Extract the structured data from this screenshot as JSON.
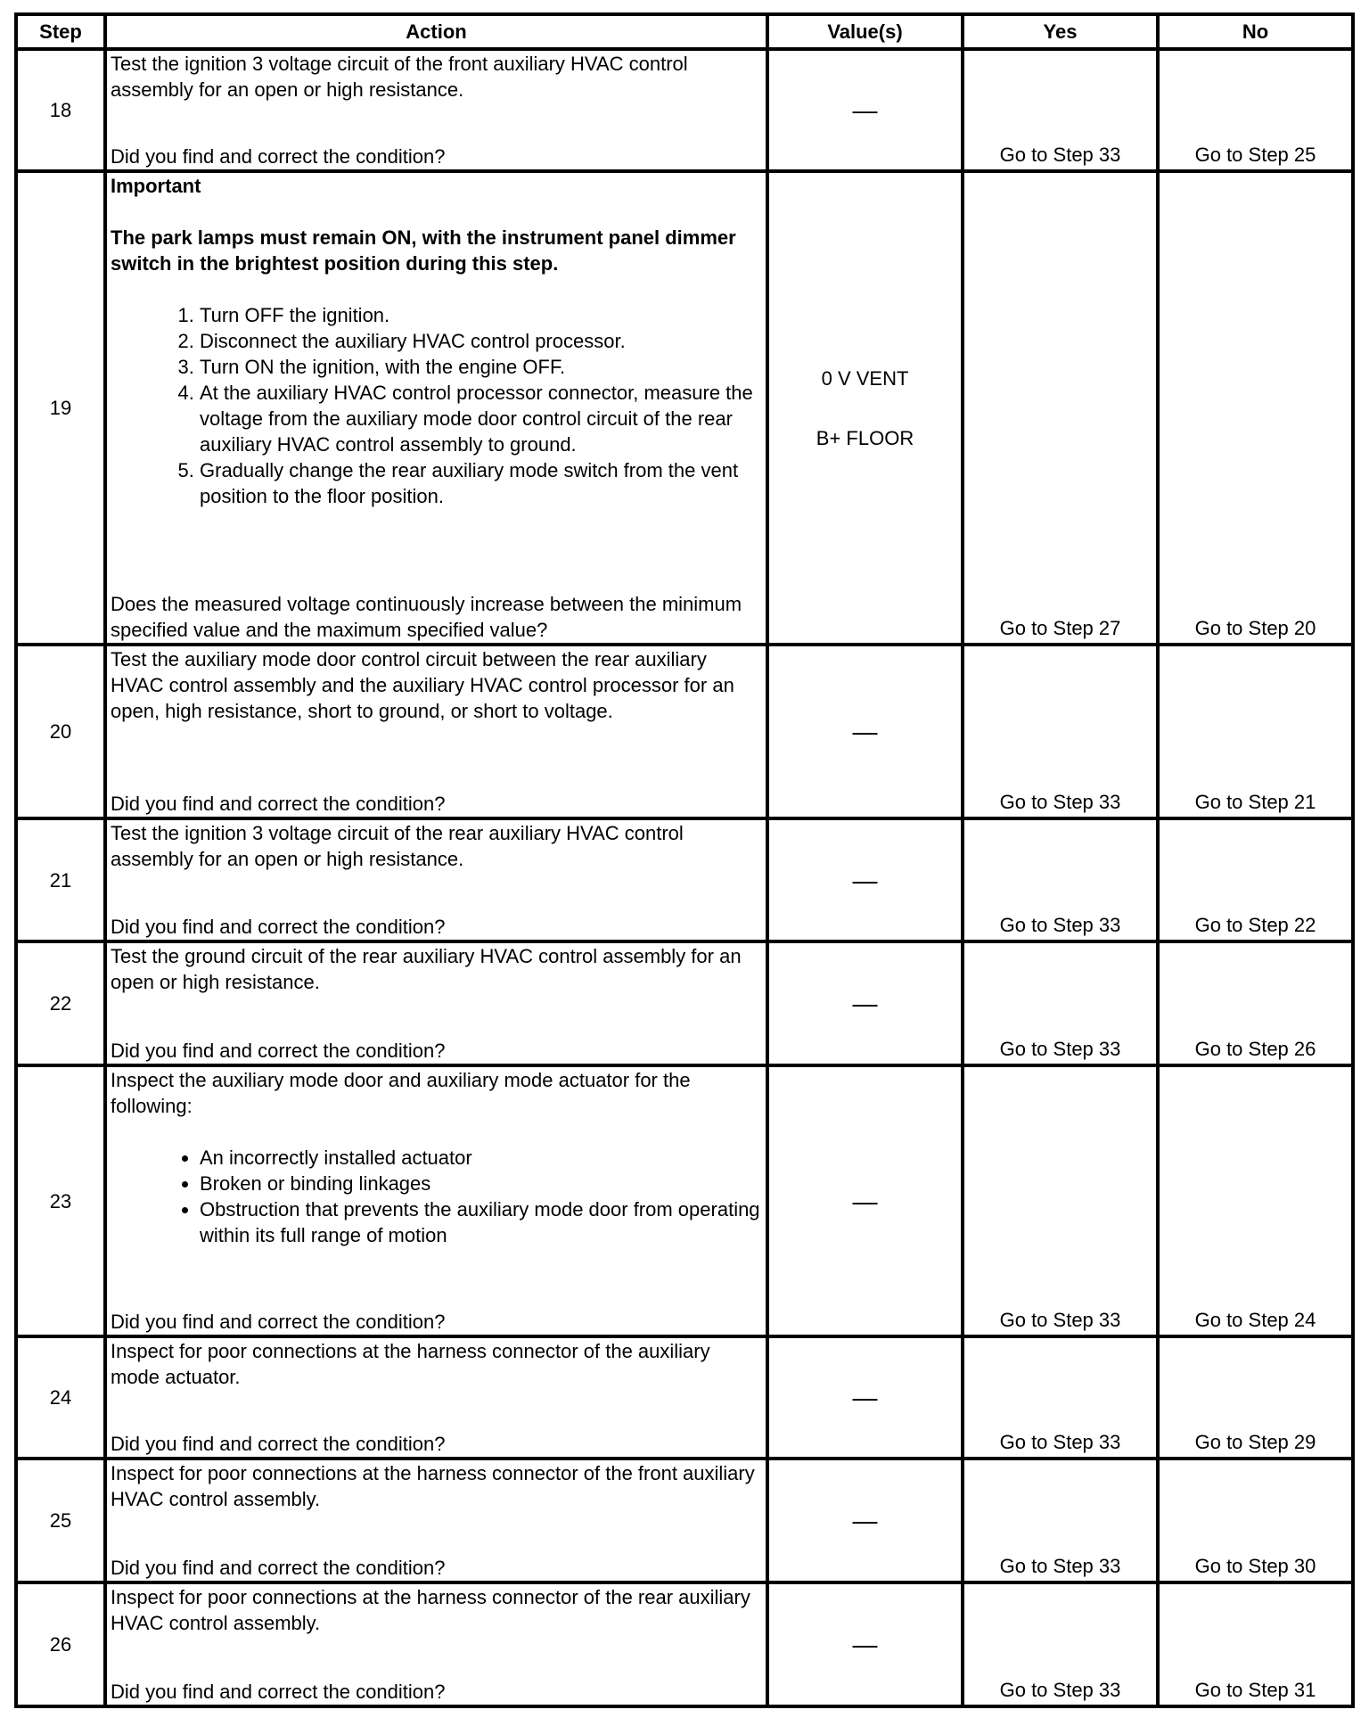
{
  "headers": {
    "step": "Step",
    "action": "Action",
    "values": "Value(s)",
    "yes": "Yes",
    "no": "No"
  },
  "rows": [
    {
      "step": "18",
      "height": 137,
      "intro": [
        "Test the ignition 3 voltage circuit of the front auxiliary HVAC control assembly for an open or high resistance."
      ],
      "question": "Did you find and correct the condition?",
      "values": [
        "—"
      ],
      "yes": "Go to Step 33",
      "no": "Go to Step 25"
    },
    {
      "step": "19",
      "height": 531,
      "important": "Important",
      "important_text": "The park lamps must remain ON, with the instrument panel dimmer switch in the brightest position during this step.",
      "list_type": "ordered",
      "list": [
        "Turn OFF the ignition.",
        "Disconnect the auxiliary HVAC control processor.",
        "Turn ON the ignition, with the engine OFF.",
        "At the auxiliary HVAC control processor connector, measure the voltage from the auxiliary mode door control circuit of the rear auxiliary HVAC control assembly to ground.",
        "Gradually change the rear auxiliary mode switch from the vent position to the floor position."
      ],
      "question": "Does the measured voltage continuously increase between the minimum specified value and the maximum specified value?",
      "values": [
        "0 V VENT",
        "B+ FLOOR"
      ],
      "yes": "Go to Step 27",
      "no": "Go to Step 20"
    },
    {
      "step": "20",
      "height": 195,
      "intro": [
        "Test the auxiliary mode door control circuit between the rear auxiliary HVAC control assembly and the auxiliary HVAC control processor for an open, high resistance, short to ground, or short to voltage."
      ],
      "question": "Did you find and correct the condition?",
      "values": [
        "—"
      ],
      "yes": "Go to Step 33",
      "no": "Go to Step 21"
    },
    {
      "step": "21",
      "height": 138,
      "intro": [
        "Test the ignition 3 voltage circuit of the rear auxiliary HVAC control assembly for an open or high resistance."
      ],
      "question": "Did you find and correct the condition?",
      "values": [
        "—"
      ],
      "yes": "Go to Step 33",
      "no": "Go to Step 22"
    },
    {
      "step": "22",
      "height": 139,
      "intro": [
        "Test the ground circuit of the rear auxiliary HVAC control assembly for an open or high resistance."
      ],
      "question": "Did you find and correct the condition?",
      "values": [
        "—"
      ],
      "yes": "Go to Step 33",
      "no": "Go to Step 26"
    },
    {
      "step": "23",
      "height": 304,
      "intro": [
        "Inspect the auxiliary mode door and auxiliary mode actuator for the following:"
      ],
      "list_type": "bullet",
      "list": [
        "An incorrectly installed actuator",
        "Broken or binding linkages",
        "Obstruction that prevents the auxiliary mode door from operating within its full range of motion"
      ],
      "question": "Did you find and correct the condition?",
      "values": [
        "—"
      ],
      "yes": "Go to Step 33",
      "no": "Go to Step 24"
    },
    {
      "step": "24",
      "height": 137,
      "intro": [
        "Inspect for poor connections at the harness connector of the auxiliary mode actuator."
      ],
      "question": "Did you find and correct the condition?",
      "values": [
        "—"
      ],
      "yes": "Go to Step 33",
      "no": "Go to Step 29"
    },
    {
      "step": "25",
      "height": 139,
      "intro": [
        "Inspect for poor connections at the harness connector of the front auxiliary HVAC control assembly."
      ],
      "question": "Did you find and correct the condition?",
      "values": [
        "—"
      ],
      "yes": "Go to Step 33",
      "no": "Go to Step 30"
    },
    {
      "step": "26",
      "height": 139,
      "intro": [
        "Inspect for poor connections at the harness connector of the rear auxiliary HVAC control assembly."
      ],
      "question": "Did you find and correct the condition?",
      "values": [
        "—"
      ],
      "yes": "Go to Step 33",
      "no": "Go to Step 31"
    }
  ]
}
